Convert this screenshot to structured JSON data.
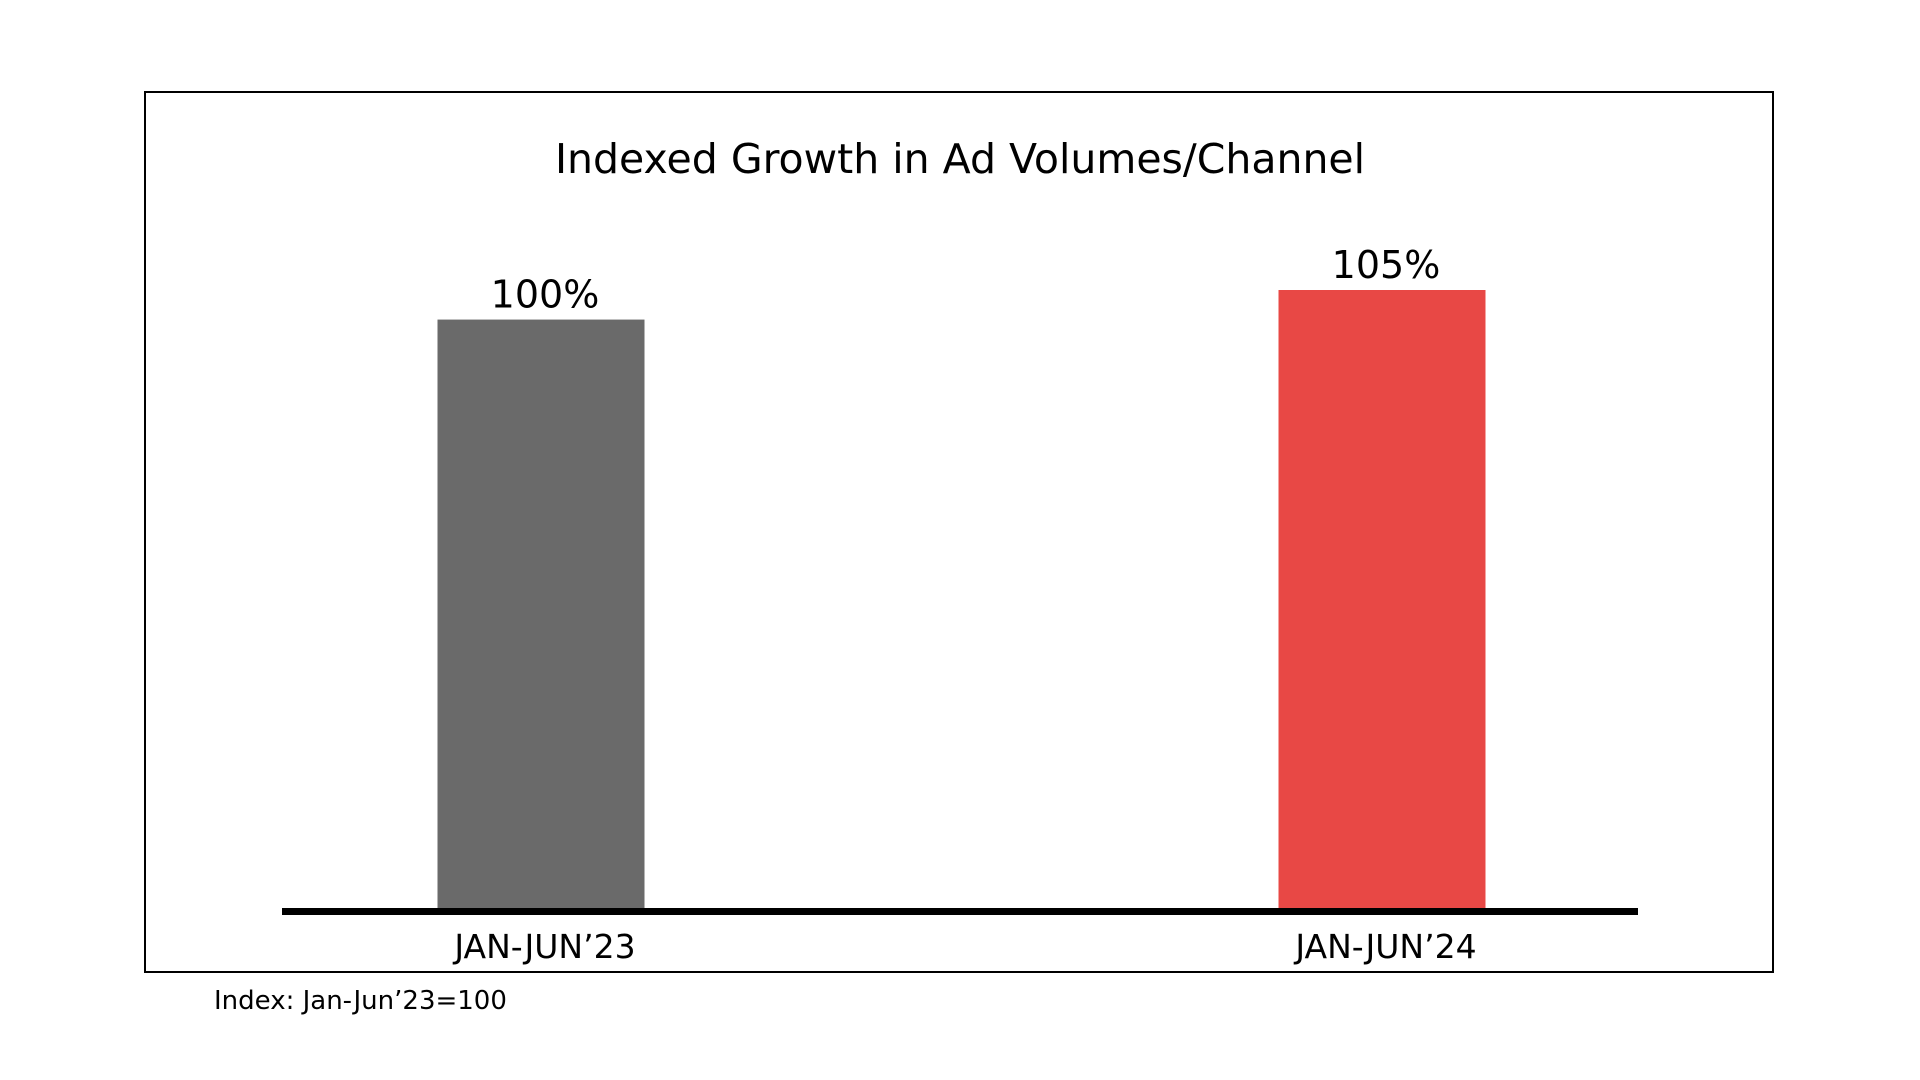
{
  "chart_data": {
    "type": "bar",
    "title": "Indexed Growth in Ad Volumes/Channel",
    "categories": [
      "JAN-JUN’23",
      "JAN-JUN’24"
    ],
    "values": [
      100,
      105
    ],
    "data_labels": [
      "100%",
      "105%"
    ],
    "colors": [
      "#6a6a6a",
      "#e84845"
    ],
    "xlabel": "",
    "ylabel": "",
    "ylim": [
      0,
      105
    ],
    "grid": false,
    "legend": "none",
    "footnote": "Index: Jan-Jun’23=100"
  }
}
